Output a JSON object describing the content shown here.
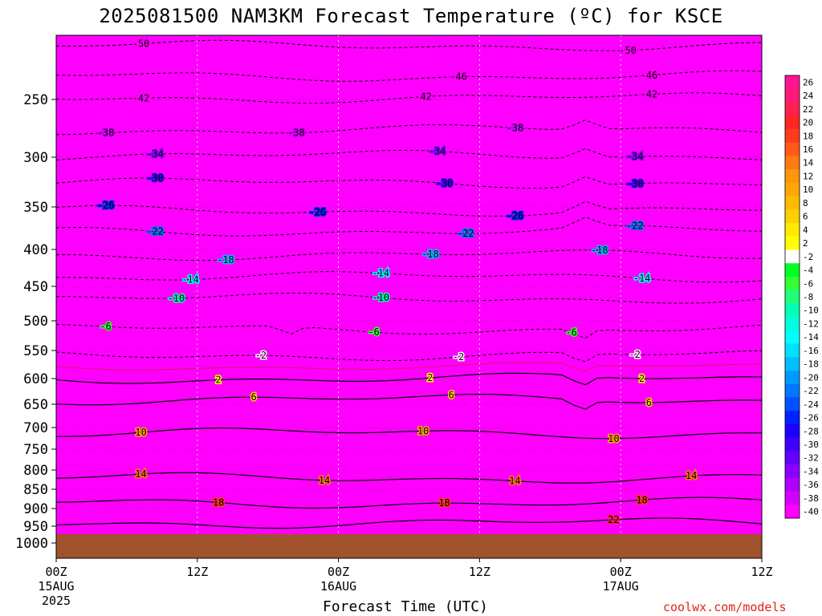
{
  "title": "2025081500 NAM3KM Forecast Temperature (ºC) for KSCE",
  "xlabel": "Forecast Time (UTC)",
  "credit": "coolwx.com/models",
  "chart_data": {
    "type": "heatmap",
    "title": "2025081500 NAM3KM Forecast Temperature (ºC) for KSCE",
    "xlabel": "Forecast Time (UTC)",
    "ylabel": "",
    "y_axis_scale": "log-pressure (inverted)",
    "ylim": [
      1050,
      200
    ],
    "y_ticks": [
      250,
      300,
      350,
      400,
      450,
      500,
      550,
      600,
      650,
      700,
      750,
      800,
      850,
      900,
      950,
      1000
    ],
    "x_ticks": [
      {
        "label": "00Z",
        "sub": [
          "15AUG",
          "2025"
        ]
      },
      {
        "label": "12Z",
        "sub": []
      },
      {
        "label": "00Z",
        "sub": [
          "16AUG"
        ]
      },
      {
        "label": "12Z",
        "sub": []
      },
      {
        "label": "00Z",
        "sub": [
          "17AUG"
        ]
      },
      {
        "label": "12Z",
        "sub": []
      }
    ],
    "colorbar_levels": [
      26,
      24,
      22,
      20,
      18,
      16,
      14,
      12,
      10,
      8,
      6,
      4,
      2,
      -2,
      -4,
      -6,
      -8,
      -10,
      -12,
      -14,
      -16,
      -18,
      -20,
      -22,
      -24,
      -26,
      -28,
      -30,
      -32,
      -34,
      -36,
      -38,
      -40
    ],
    "colorbar_colors": [
      "#ff1493",
      "#ff1a7a",
      "#ff1f50",
      "#ff2626",
      "#ff3a1e",
      "#ff5a18",
      "#ff7a12",
      "#ff960c",
      "#ffa808",
      "#ffba04",
      "#ffd000",
      "#ffea00",
      "#ffff00",
      "#ffffff",
      "#00ff22",
      "#33ff33",
      "#1fff7a",
      "#00ffb0",
      "#00ffe0",
      "#00ffff",
      "#00e0ff",
      "#00bfff",
      "#0099ff",
      "#0077ff",
      "#0050ff",
      "#0022ff",
      "#1a00ff",
      "#3f00ff",
      "#6400ff",
      "#8a00ff",
      "#b000ff",
      "#d400ff",
      "#ff00ff"
    ],
    "ground_color": "#a0522d",
    "isotherm_color_below_freezing": "#000000",
    "isotherm_color_above_freezing": "#000000",
    "freezing_line_color": "#e0147a",
    "contour_labels": [
      {
        "value": "-50",
        "x": [
          0.12,
          0.81
        ]
      },
      {
        "value": "-46",
        "x": [
          0.57,
          0.84
        ]
      },
      {
        "value": "-42",
        "x": [
          0.12,
          0.52,
          0.84
        ]
      },
      {
        "value": "-38",
        "x": [
          0.07,
          0.34,
          0.65
        ]
      },
      {
        "value": "-34",
        "x": [
          0.14,
          0.54,
          0.82
        ]
      },
      {
        "value": "-30",
        "x": [
          0.14,
          0.55,
          0.82
        ]
      },
      {
        "value": "-26",
        "x": [
          0.07,
          0.37,
          0.65
        ]
      },
      {
        "value": "-22",
        "x": [
          0.14,
          0.58,
          0.82
        ]
      },
      {
        "value": "-18",
        "x": [
          0.24,
          0.53,
          0.77
        ]
      },
      {
        "value": "-14",
        "x": [
          0.19,
          0.46,
          0.83
        ]
      },
      {
        "value": "-10",
        "x": [
          0.17,
          0.46
        ]
      },
      {
        "value": "-6",
        "x": [
          0.07,
          0.45,
          0.73
        ]
      },
      {
        "value": "-2",
        "x": [
          0.29,
          0.57,
          0.82
        ]
      },
      {
        "value": "2",
        "x": [
          0.23,
          0.53,
          0.83
        ]
      },
      {
        "value": "6",
        "x": [
          0.28,
          0.56,
          0.84
        ]
      },
      {
        "value": "10",
        "x": [
          0.12,
          0.52,
          0.79
        ]
      },
      {
        "value": "14",
        "x": [
          0.12,
          0.38,
          0.65,
          0.9
        ]
      },
      {
        "value": "18",
        "x": [
          0.23,
          0.55,
          0.83
        ]
      },
      {
        "value": "22",
        "x": [
          0.79
        ]
      }
    ]
  }
}
